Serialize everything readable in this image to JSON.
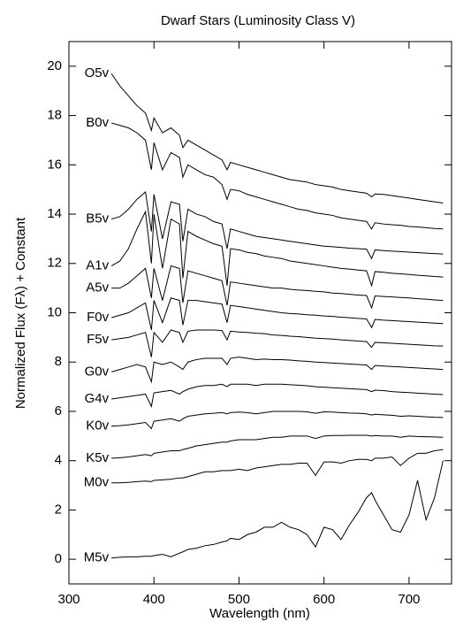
{
  "chart_data": {
    "type": "line",
    "title": "Dwarf Stars (Luminosity Class V)",
    "x_label": "Wavelength (nm)",
    "y_label": "Normalized Flux (Fλ) + Constant",
    "xlim": [
      300,
      750
    ],
    "ylim": [
      -1,
      21
    ],
    "xticks": [
      300,
      400,
      500,
      600,
      700
    ],
    "yticks": [
      0,
      2,
      4,
      6,
      8,
      10,
      12,
      14,
      16,
      18,
      20
    ],
    "x": [
      350,
      360,
      370,
      380,
      390,
      397,
      400,
      410,
      420,
      430,
      434,
      440,
      450,
      460,
      470,
      480,
      486,
      490,
      500,
      510,
      520,
      530,
      540,
      550,
      560,
      570,
      580,
      590,
      600,
      610,
      620,
      630,
      640,
      650,
      656,
      660,
      670,
      680,
      690,
      700,
      710,
      720,
      730,
      740
    ],
    "series": [
      {
        "name": "O5v",
        "color": "#000000",
        "values": [
          19.7,
          19.2,
          18.8,
          18.4,
          18.1,
          17.4,
          17.9,
          17.3,
          17.5,
          17.2,
          16.7,
          17.0,
          16.8,
          16.6,
          16.4,
          16.2,
          15.8,
          16.1,
          16.0,
          15.9,
          15.8,
          15.7,
          15.6,
          15.5,
          15.4,
          15.35,
          15.3,
          15.2,
          15.15,
          15.1,
          15.0,
          14.95,
          14.9,
          14.85,
          14.7,
          14.82,
          14.8,
          14.75,
          14.7,
          14.65,
          14.6,
          14.55,
          14.5,
          14.45
        ]
      },
      {
        "name": "B0v",
        "color": "#000000",
        "values": [
          17.7,
          17.6,
          17.5,
          17.3,
          17.0,
          15.8,
          16.9,
          15.8,
          16.5,
          16.3,
          15.5,
          16.0,
          15.8,
          15.6,
          15.5,
          15.2,
          14.6,
          15.0,
          14.95,
          14.8,
          14.7,
          14.6,
          14.5,
          14.4,
          14.3,
          14.2,
          14.15,
          14.05,
          14.0,
          13.95,
          13.85,
          13.8,
          13.75,
          13.7,
          13.4,
          13.65,
          13.6,
          13.57,
          13.55,
          13.5,
          13.48,
          13.45,
          13.42,
          13.4
        ]
      },
      {
        "name": "B5v",
        "color": "#000000",
        "values": [
          13.8,
          13.9,
          14.2,
          14.6,
          14.9,
          13.3,
          14.8,
          13.0,
          14.5,
          14.4,
          12.9,
          14.2,
          14.0,
          13.9,
          13.7,
          13.6,
          12.6,
          13.4,
          13.3,
          13.2,
          13.1,
          13.05,
          13.0,
          12.95,
          12.9,
          12.85,
          12.8,
          12.75,
          12.7,
          12.68,
          12.65,
          12.62,
          12.6,
          12.58,
          12.2,
          12.55,
          12.52,
          12.5,
          12.48,
          12.46,
          12.44,
          12.42,
          12.4,
          12.38
        ]
      },
      {
        "name": "A1v",
        "color": "#000000",
        "values": [
          11.9,
          12.1,
          12.6,
          13.4,
          14.1,
          12.0,
          14.0,
          11.8,
          13.8,
          13.6,
          11.4,
          13.3,
          13.1,
          12.95,
          12.8,
          12.7,
          11.1,
          12.6,
          12.55,
          12.45,
          12.4,
          12.3,
          12.25,
          12.2,
          12.1,
          12.05,
          12.0,
          11.95,
          11.9,
          11.85,
          11.8,
          11.77,
          11.73,
          11.7,
          11.1,
          11.67,
          11.64,
          11.6,
          11.58,
          11.55,
          11.52,
          11.5,
          11.47,
          11.45
        ]
      },
      {
        "name": "A5v",
        "color": "#000000",
        "values": [
          11.0,
          11.0,
          11.2,
          11.5,
          11.8,
          10.6,
          11.8,
          10.5,
          11.9,
          11.8,
          10.4,
          11.7,
          11.6,
          11.5,
          11.4,
          11.3,
          10.3,
          11.25,
          11.2,
          11.15,
          11.1,
          11.05,
          11.0,
          11.0,
          10.95,
          10.92,
          10.9,
          10.87,
          10.85,
          10.8,
          10.78,
          10.75,
          10.72,
          10.7,
          10.2,
          10.68,
          10.66,
          10.64,
          10.62,
          10.6,
          10.57,
          10.55,
          10.52,
          10.5
        ]
      },
      {
        "name": "F0v",
        "color": "#000000",
        "values": [
          9.8,
          9.9,
          10.0,
          10.2,
          10.4,
          9.3,
          10.5,
          9.6,
          10.6,
          10.5,
          9.5,
          10.5,
          10.5,
          10.45,
          10.4,
          10.35,
          9.6,
          10.3,
          10.25,
          10.2,
          10.15,
          10.1,
          10.05,
          10.0,
          9.97,
          9.95,
          9.92,
          9.9,
          9.87,
          9.85,
          9.82,
          9.8,
          9.77,
          9.75,
          9.4,
          9.73,
          9.7,
          9.68,
          9.66,
          9.64,
          9.62,
          9.6,
          9.58,
          9.56
        ]
      },
      {
        "name": "F5v",
        "color": "#000000",
        "values": [
          8.9,
          8.95,
          9.0,
          9.1,
          9.2,
          8.2,
          9.2,
          8.8,
          9.3,
          9.2,
          8.8,
          9.25,
          9.3,
          9.3,
          9.3,
          9.28,
          8.9,
          9.25,
          9.22,
          9.2,
          9.17,
          9.15,
          9.1,
          9.08,
          9.05,
          9.03,
          9.0,
          8.97,
          8.95,
          8.93,
          8.9,
          8.88,
          8.85,
          8.83,
          8.6,
          8.8,
          8.78,
          8.76,
          8.74,
          8.72,
          8.7,
          8.68,
          8.66,
          8.65
        ]
      },
      {
        "name": "G0v",
        "color": "#000000",
        "values": [
          7.6,
          7.7,
          7.8,
          7.9,
          7.8,
          7.2,
          8.0,
          7.9,
          8.0,
          7.8,
          7.7,
          8.0,
          8.1,
          8.15,
          8.15,
          8.15,
          7.9,
          8.15,
          8.2,
          8.15,
          8.1,
          8.12,
          8.1,
          8.1,
          8.08,
          8.05,
          8.03,
          8.0,
          7.98,
          7.96,
          7.94,
          7.92,
          7.9,
          7.88,
          7.7,
          7.86,
          7.84,
          7.82,
          7.8,
          7.78,
          7.76,
          7.74,
          7.72,
          7.7
        ]
      },
      {
        "name": "G4v",
        "color": "#000000",
        "values": [
          6.5,
          6.55,
          6.6,
          6.65,
          6.7,
          6.2,
          6.75,
          6.8,
          6.85,
          6.7,
          6.8,
          6.9,
          7.0,
          7.05,
          7.05,
          7.1,
          7.0,
          7.1,
          7.1,
          7.1,
          7.05,
          7.1,
          7.1,
          7.1,
          7.08,
          7.06,
          7.04,
          7.0,
          6.98,
          6.96,
          6.94,
          6.92,
          6.9,
          6.88,
          6.8,
          6.86,
          6.84,
          6.8,
          6.78,
          6.76,
          6.74,
          6.72,
          6.7,
          6.68
        ]
      },
      {
        "name": "K0v",
        "color": "#000000",
        "values": [
          5.4,
          5.42,
          5.45,
          5.5,
          5.55,
          5.3,
          5.6,
          5.65,
          5.7,
          5.6,
          5.7,
          5.8,
          5.85,
          5.9,
          5.92,
          5.95,
          5.9,
          5.95,
          5.97,
          5.95,
          5.9,
          5.95,
          6.0,
          6.0,
          6.0,
          6.0,
          5.98,
          5.92,
          5.98,
          5.97,
          5.95,
          5.93,
          5.92,
          5.9,
          5.85,
          5.88,
          5.86,
          5.84,
          5.8,
          5.82,
          5.8,
          5.78,
          5.76,
          5.75
        ]
      },
      {
        "name": "K5v",
        "color": "#000000",
        "values": [
          4.1,
          4.12,
          4.15,
          4.2,
          4.25,
          4.2,
          4.3,
          4.35,
          4.4,
          4.4,
          4.45,
          4.5,
          4.6,
          4.65,
          4.7,
          4.75,
          4.75,
          4.8,
          4.85,
          4.85,
          4.85,
          4.9,
          4.95,
          4.95,
          5.0,
          5.0,
          5.0,
          4.9,
          5.0,
          5.02,
          5.02,
          5.03,
          5.03,
          5.03,
          5.0,
          5.02,
          5.0,
          5.0,
          4.95,
          5.0,
          4.98,
          4.97,
          4.96,
          4.95
        ]
      },
      {
        "name": "M0v",
        "color": "#000000",
        "values": [
          3.1,
          3.1,
          3.12,
          3.15,
          3.17,
          3.15,
          3.2,
          3.22,
          3.25,
          3.3,
          3.3,
          3.35,
          3.45,
          3.55,
          3.55,
          3.6,
          3.6,
          3.6,
          3.65,
          3.6,
          3.7,
          3.75,
          3.8,
          3.85,
          3.85,
          3.9,
          3.9,
          3.4,
          3.95,
          3.95,
          3.9,
          4.0,
          4.05,
          4.05,
          4.0,
          4.1,
          4.1,
          4.15,
          3.8,
          4.1,
          4.3,
          4.3,
          4.4,
          4.45
        ]
      },
      {
        "name": "M5v",
        "color": "#000000",
        "values": [
          0.05,
          0.08,
          0.1,
          0.1,
          0.12,
          0.12,
          0.15,
          0.2,
          0.1,
          0.25,
          0.3,
          0.4,
          0.45,
          0.55,
          0.6,
          0.7,
          0.75,
          0.85,
          0.8,
          1.0,
          1.1,
          1.3,
          1.3,
          1.5,
          1.3,
          1.2,
          1.0,
          0.5,
          1.3,
          1.2,
          0.8,
          1.4,
          1.9,
          2.5,
          2.7,
          2.4,
          1.8,
          1.2,
          1.1,
          1.8,
          3.2,
          1.6,
          2.5,
          4.0
        ]
      }
    ]
  }
}
